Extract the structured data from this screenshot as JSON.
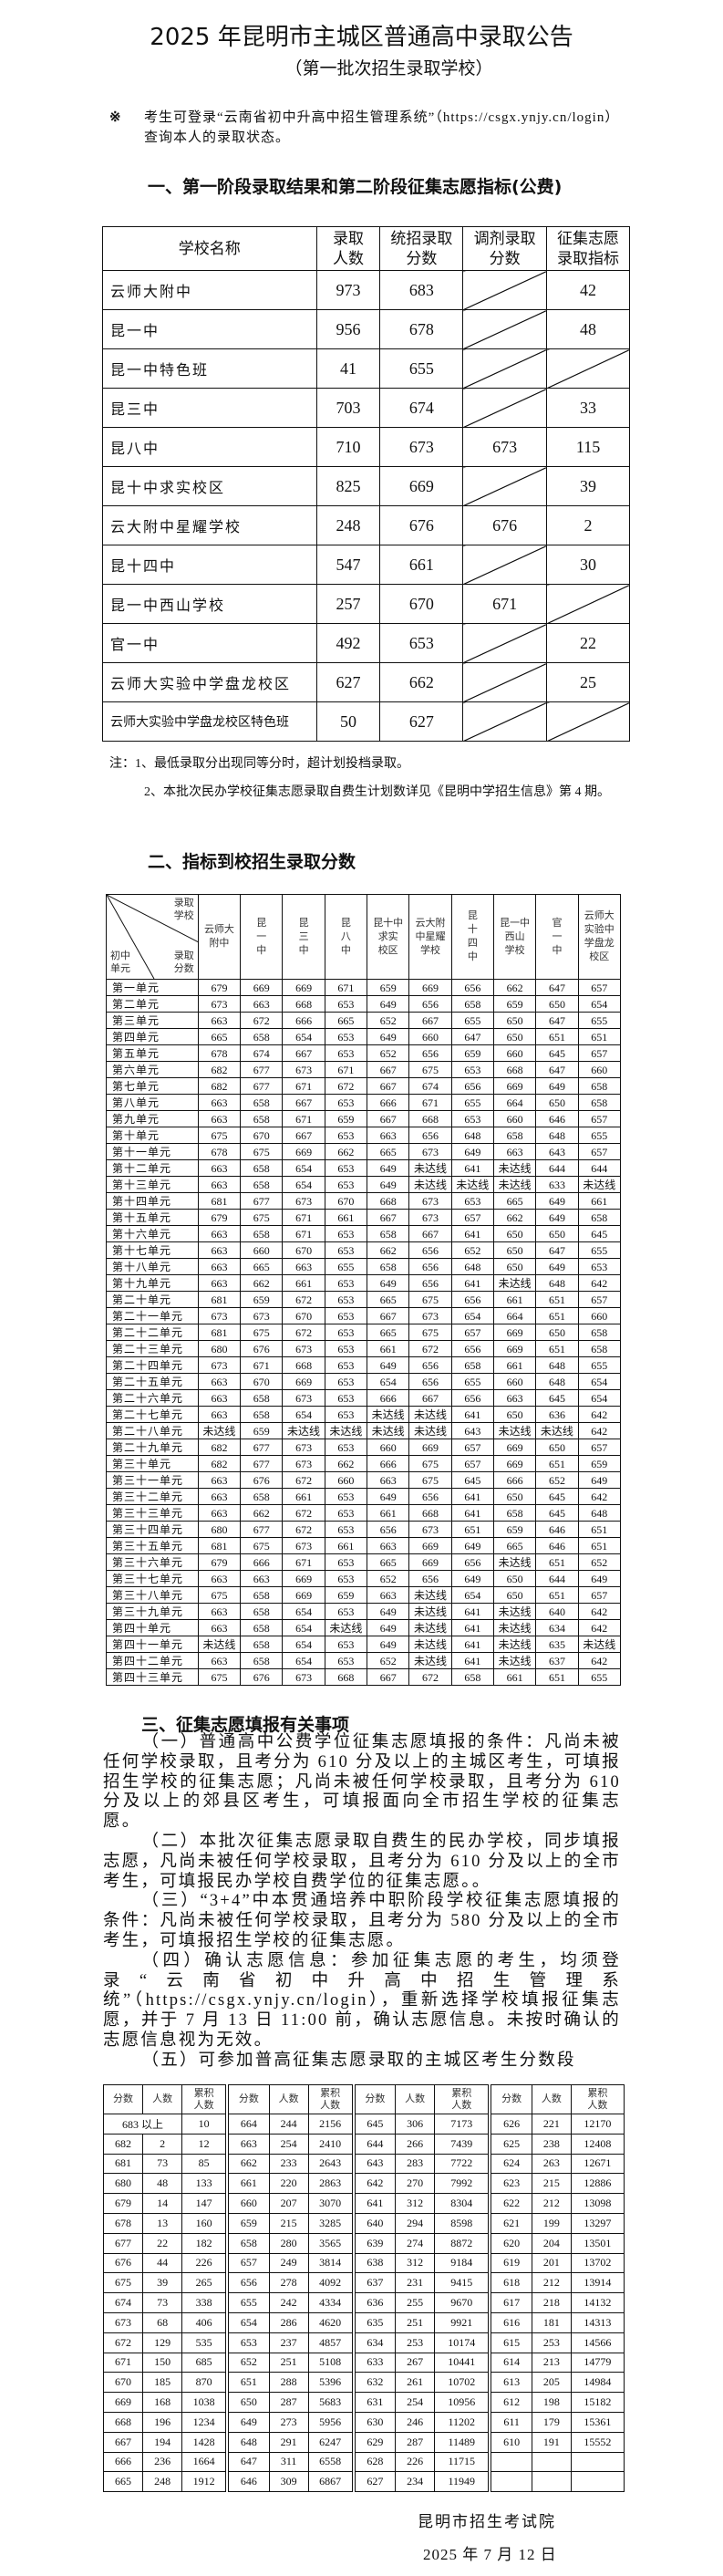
{
  "title": "2025 年昆明市主城区普通高中录取公告",
  "subtitle": "（第一批次招生录取学校）",
  "notice": {
    "mark": "※",
    "text": "考生可登录“云南省初中升高中招生管理系统”（https://csgx.ynjy.cn/login）查询本人的录取状态。"
  },
  "section1": {
    "heading": "一、第一阶段录取结果和第二阶段征集志愿指标(公费)",
    "headers": [
      "学校名称",
      "录取\n人数",
      "统招录取\n分数",
      "调剂录取\n分数",
      "征集志愿\n录取指标"
    ],
    "rows": [
      [
        "云师大附中",
        "973",
        "683",
        null,
        "42"
      ],
      [
        "昆一中",
        "956",
        "678",
        null,
        "48"
      ],
      [
        "昆一中特色班",
        "41",
        "655",
        null,
        null
      ],
      [
        "昆三中",
        "703",
        "674",
        null,
        "33"
      ],
      [
        "昆八中",
        "710",
        "673",
        "673",
        "115"
      ],
      [
        "昆十中求实校区",
        "825",
        "669",
        null,
        "39"
      ],
      [
        "云大附中星耀学校",
        "248",
        "676",
        "676",
        "2"
      ],
      [
        "昆十四中",
        "547",
        "661",
        null,
        "30"
      ],
      [
        "昆一中西山学校",
        "257",
        "670",
        "671",
        null
      ],
      [
        "官一中",
        "492",
        "653",
        null,
        "22"
      ],
      [
        "云师大实验中学盘龙校区",
        "627",
        "662",
        null,
        "25"
      ],
      [
        "云师大实验中学盘龙校区特色班",
        "50",
        "627",
        null,
        null
      ]
    ],
    "notes": [
      "注：1、最低录取分出现同等分时，超计划投档录取。",
      "2、本批次民办学校征集志愿录取自费生计划数详见《昆明中学招生信息》第 4 期。"
    ]
  },
  "section2": {
    "heading": "二、指标到校招生录取分数",
    "corner": {
      "top_right": "录取\n学校",
      "bottom_right": "录取\n分数",
      "bottom_left": "初中\n单元"
    },
    "schools": [
      "云师大\n附中",
      "昆\n一\n中",
      "昆\n三\n中",
      "昆\n八\n中",
      "昆十中\n求实\n校区",
      "云大附\n中星耀\n学校",
      "昆\n十\n四\n中",
      "昆一中\n西山\n学校",
      "官\n一\n中",
      "云师大\n实验中\n学盘龙\n校区"
    ],
    "rows": [
      [
        "第一单元",
        "679",
        "669",
        "669",
        "671",
        "659",
        "669",
        "656",
        "662",
        "647",
        "657"
      ],
      [
        "第二单元",
        "673",
        "663",
        "668",
        "653",
        "649",
        "656",
        "658",
        "659",
        "650",
        "654"
      ],
      [
        "第三单元",
        "663",
        "672",
        "666",
        "665",
        "652",
        "667",
        "655",
        "650",
        "647",
        "655"
      ],
      [
        "第四单元",
        "665",
        "658",
        "654",
        "653",
        "649",
        "660",
        "647",
        "650",
        "651",
        "651"
      ],
      [
        "第五单元",
        "678",
        "674",
        "667",
        "653",
        "652",
        "656",
        "659",
        "660",
        "645",
        "657"
      ],
      [
        "第六单元",
        "682",
        "677",
        "673",
        "671",
        "667",
        "675",
        "653",
        "668",
        "647",
        "660"
      ],
      [
        "第七单元",
        "682",
        "677",
        "671",
        "672",
        "667",
        "674",
        "656",
        "669",
        "649",
        "658"
      ],
      [
        "第八单元",
        "663",
        "658",
        "667",
        "653",
        "666",
        "671",
        "655",
        "664",
        "650",
        "658"
      ],
      [
        "第九单元",
        "663",
        "658",
        "671",
        "659",
        "667",
        "668",
        "653",
        "660",
        "646",
        "657"
      ],
      [
        "第十单元",
        "675",
        "670",
        "667",
        "653",
        "663",
        "656",
        "648",
        "658",
        "648",
        "655"
      ],
      [
        "第十一单元",
        "678",
        "675",
        "669",
        "662",
        "665",
        "673",
        "649",
        "663",
        "643",
        "657"
      ],
      [
        "第十二单元",
        "663",
        "658",
        "654",
        "653",
        "649",
        "未达线",
        "641",
        "未达线",
        "644",
        "644"
      ],
      [
        "第十三单元",
        "663",
        "658",
        "654",
        "653",
        "649",
        "未达线",
        "未达线",
        "未达线",
        "633",
        "未达线"
      ],
      [
        "第十四单元",
        "681",
        "677",
        "673",
        "670",
        "668",
        "673",
        "653",
        "665",
        "649",
        "661"
      ],
      [
        "第十五单元",
        "679",
        "675",
        "671",
        "661",
        "667",
        "673",
        "657",
        "662",
        "649",
        "658"
      ],
      [
        "第十六单元",
        "663",
        "658",
        "671",
        "653",
        "658",
        "667",
        "641",
        "650",
        "650",
        "645"
      ],
      [
        "第十七单元",
        "663",
        "660",
        "670",
        "653",
        "662",
        "656",
        "652",
        "650",
        "647",
        "655"
      ],
      [
        "第十八单元",
        "663",
        "665",
        "663",
        "655",
        "658",
        "656",
        "648",
        "650",
        "649",
        "653"
      ],
      [
        "第十九单元",
        "663",
        "662",
        "661",
        "653",
        "649",
        "656",
        "641",
        "未达线",
        "648",
        "642"
      ],
      [
        "第二十单元",
        "681",
        "659",
        "672",
        "653",
        "665",
        "675",
        "656",
        "661",
        "651",
        "657"
      ],
      [
        "第二十一单元",
        "673",
        "673",
        "670",
        "653",
        "667",
        "673",
        "654",
        "664",
        "651",
        "660"
      ],
      [
        "第二十二单元",
        "681",
        "675",
        "672",
        "653",
        "665",
        "675",
        "657",
        "669",
        "650",
        "658"
      ],
      [
        "第二十三单元",
        "680",
        "676",
        "673",
        "653",
        "661",
        "672",
        "656",
        "669",
        "651",
        "658"
      ],
      [
        "第二十四单元",
        "673",
        "671",
        "668",
        "653",
        "649",
        "656",
        "658",
        "661",
        "648",
        "655"
      ],
      [
        "第二十五单元",
        "663",
        "670",
        "669",
        "653",
        "654",
        "656",
        "655",
        "660",
        "648",
        "654"
      ],
      [
        "第二十六单元",
        "663",
        "658",
        "673",
        "653",
        "666",
        "667",
        "656",
        "663",
        "645",
        "654"
      ],
      [
        "第二十七单元",
        "663",
        "658",
        "654",
        "653",
        "未达线",
        "未达线",
        "641",
        "650",
        "636",
        "642"
      ],
      [
        "第二十八单元",
        "未达线",
        "659",
        "未达线",
        "未达线",
        "未达线",
        "未达线",
        "643",
        "未达线",
        "未达线",
        "642"
      ],
      [
        "第二十九单元",
        "682",
        "677",
        "673",
        "653",
        "660",
        "669",
        "657",
        "669",
        "650",
        "657"
      ],
      [
        "第三十单元",
        "682",
        "677",
        "673",
        "662",
        "666",
        "675",
        "657",
        "669",
        "651",
        "659"
      ],
      [
        "第三十一单元",
        "663",
        "676",
        "672",
        "660",
        "663",
        "675",
        "645",
        "666",
        "652",
        "649"
      ],
      [
        "第三十二单元",
        "663",
        "658",
        "661",
        "653",
        "649",
        "656",
        "641",
        "650",
        "645",
        "642"
      ],
      [
        "第三十三单元",
        "663",
        "662",
        "672",
        "653",
        "661",
        "668",
        "641",
        "658",
        "645",
        "648"
      ],
      [
        "第三十四单元",
        "680",
        "677",
        "672",
        "653",
        "656",
        "673",
        "651",
        "659",
        "646",
        "651"
      ],
      [
        "第三十五单元",
        "681",
        "675",
        "673",
        "661",
        "663",
        "669",
        "649",
        "665",
        "646",
        "651"
      ],
      [
        "第三十六单元",
        "679",
        "666",
        "671",
        "653",
        "665",
        "669",
        "656",
        "未达线",
        "651",
        "652"
      ],
      [
        "第三十七单元",
        "663",
        "663",
        "669",
        "653",
        "652",
        "656",
        "649",
        "650",
        "644",
        "649"
      ],
      [
        "第三十八单元",
        "675",
        "658",
        "669",
        "659",
        "663",
        "未达线",
        "654",
        "650",
        "651",
        "657"
      ],
      [
        "第三十九单元",
        "663",
        "658",
        "654",
        "653",
        "649",
        "未达线",
        "641",
        "未达线",
        "640",
        "642"
      ],
      [
        "第四十单元",
        "663",
        "658",
        "654",
        "未达线",
        "649",
        "未达线",
        "641",
        "未达线",
        "634",
        "642"
      ],
      [
        "第四十一单元",
        "未达线",
        "658",
        "654",
        "653",
        "649",
        "未达线",
        "641",
        "未达线",
        "635",
        "未达线"
      ],
      [
        "第四十二单元",
        "663",
        "658",
        "654",
        "653",
        "652",
        "未达线",
        "641",
        "未达线",
        "637",
        "642"
      ],
      [
        "第四十三单元",
        "675",
        "676",
        "673",
        "668",
        "667",
        "672",
        "658",
        "661",
        "651",
        "655"
      ]
    ]
  },
  "section3": {
    "heading": "三、征集志愿填报有关事项",
    "paragraphs": [
      "（一）普通高中公费学位征集志愿填报的条件：凡尚未被任何学校录取，且考分为 610 分及以上的主城区考生，可填报招生学校的征集志愿；凡尚未被任何学校录取，且考分为 610 分及以上的郊县区考生，可填报面向全市招生学校的征集志愿。",
      "（二）本批次征集志愿录取自费生的民办学校，同步填报志愿，凡尚未被任何学校录取，且考分为 610 分及以上的全市考生，可填报民办学校自费学位的征集志愿。。",
      "（三）“3+4”中本贯通培养中职阶段学校征集志愿填报的条件：凡尚未被任何学校录取，且考分为 580 分及以上的全市考生，可填报招生学校的征集志愿。",
      "（四）确认志愿信息：参加征集志愿的考生，均须登录“云南省初中升高中招生管理系统”（https://csgx.ynjy.cn/login），重新选择学校填报征集志愿，并于 7 月 13 日 11:00 前，确认志愿信息。未按时确认的志愿信息视为无效。",
      "（五）可参加普高征集志愿录取的主城区考生分数段"
    ],
    "table_headers": [
      "分数",
      "人数",
      "累积\n人数"
    ],
    "top_row_label": "683 以上",
    "top_row": [
      "10",
      "664",
      "244",
      "2156",
      "645",
      "306",
      "7173",
      "626",
      "221",
      "12170"
    ],
    "rows": [
      [
        "682",
        "2",
        "12",
        "663",
        "254",
        "2410",
        "644",
        "266",
        "7439",
        "625",
        "238",
        "12408"
      ],
      [
        "681",
        "73",
        "85",
        "662",
        "233",
        "2643",
        "643",
        "283",
        "7722",
        "624",
        "263",
        "12671"
      ],
      [
        "680",
        "48",
        "133",
        "661",
        "220",
        "2863",
        "642",
        "270",
        "7992",
        "623",
        "215",
        "12886"
      ],
      [
        "679",
        "14",
        "147",
        "660",
        "207",
        "3070",
        "641",
        "312",
        "8304",
        "622",
        "212",
        "13098"
      ],
      [
        "678",
        "13",
        "160",
        "659",
        "215",
        "3285",
        "640",
        "294",
        "8598",
        "621",
        "199",
        "13297"
      ],
      [
        "677",
        "22",
        "182",
        "658",
        "280",
        "3565",
        "639",
        "274",
        "8872",
        "620",
        "204",
        "13501"
      ],
      [
        "676",
        "44",
        "226",
        "657",
        "249",
        "3814",
        "638",
        "312",
        "9184",
        "619",
        "201",
        "13702"
      ],
      [
        "675",
        "39",
        "265",
        "656",
        "278",
        "4092",
        "637",
        "231",
        "9415",
        "618",
        "212",
        "13914"
      ],
      [
        "674",
        "73",
        "338",
        "655",
        "242",
        "4334",
        "636",
        "255",
        "9670",
        "617",
        "218",
        "14132"
      ],
      [
        "673",
        "68",
        "406",
        "654",
        "286",
        "4620",
        "635",
        "251",
        "9921",
        "616",
        "181",
        "14313"
      ],
      [
        "672",
        "129",
        "535",
        "653",
        "237",
        "4857",
        "634",
        "253",
        "10174",
        "615",
        "253",
        "14566"
      ],
      [
        "671",
        "150",
        "685",
        "652",
        "251",
        "5108",
        "633",
        "267",
        "10441",
        "614",
        "213",
        "14779"
      ],
      [
        "670",
        "185",
        "870",
        "651",
        "288",
        "5396",
        "632",
        "261",
        "10702",
        "613",
        "205",
        "14984"
      ],
      [
        "669",
        "168",
        "1038",
        "650",
        "287",
        "5683",
        "631",
        "254",
        "10956",
        "612",
        "198",
        "15182"
      ],
      [
        "668",
        "196",
        "1234",
        "649",
        "273",
        "5956",
        "630",
        "246",
        "11202",
        "611",
        "179",
        "15361"
      ],
      [
        "667",
        "194",
        "1428",
        "648",
        "291",
        "6247",
        "629",
        "287",
        "11489",
        "610",
        "191",
        "15552"
      ],
      [
        "666",
        "236",
        "1664",
        "647",
        "311",
        "6558",
        "628",
        "226",
        "11715",
        "",
        "",
        ""
      ],
      [
        "665",
        "248",
        "1912",
        "646",
        "309",
        "6867",
        "627",
        "234",
        "11949",
        "",
        "",
        ""
      ]
    ]
  },
  "footer": {
    "issuer": "昆明市招生考试院",
    "date": "2025 年 7 月 12 日"
  }
}
